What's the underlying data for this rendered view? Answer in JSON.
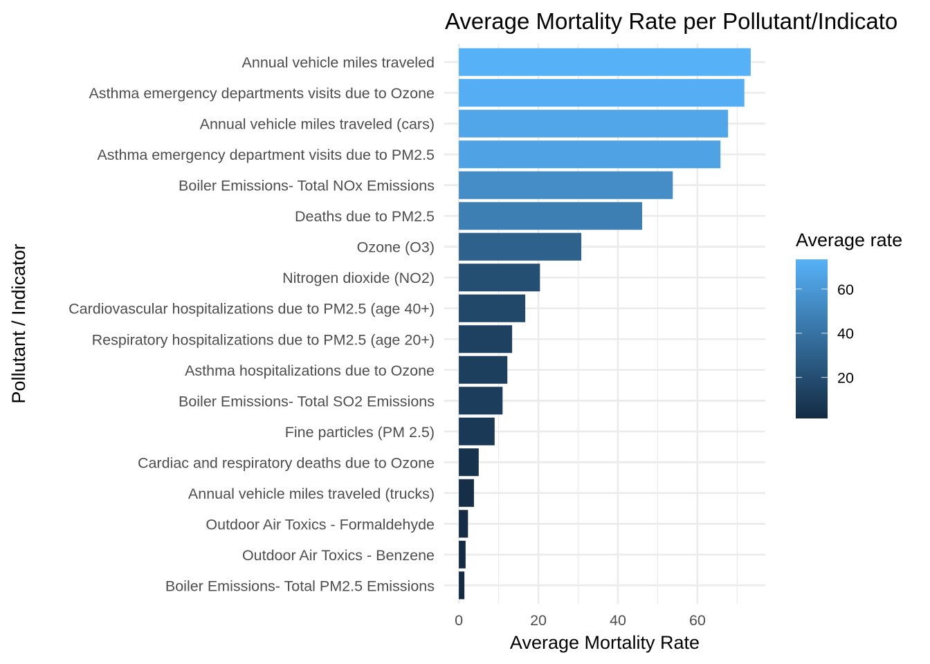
{
  "chart_data": {
    "type": "bar",
    "orientation": "horizontal",
    "title": "Average Mortality Rate per Pollutant/Indicato",
    "xlabel": "Average Mortality Rate",
    "ylabel": "Pollutant / Indicator",
    "categories": [
      "Annual vehicle miles traveled",
      "Asthma emergency departments visits due to Ozone",
      "Annual vehicle miles traveled (cars)",
      "Asthma emergency department visits due to PM2.5",
      "Boiler Emissions- Total NOx Emissions",
      "Deaths due to PM2.5",
      "Ozone (O3)",
      "Nitrogen dioxide (NO2)",
      "Cardiovascular hospitalizations due to PM2.5 (age 40+)",
      "Respiratory hospitalizations due to PM2.5 (age 20+)",
      "Asthma hospitalizations due to Ozone",
      "Boiler Emissions- Total SO2 Emissions",
      "Fine particles (PM 2.5)",
      "Cardiac and respiratory deaths due to Ozone",
      "Annual vehicle miles traveled (trucks)",
      "Outdoor Air Toxics - Formaldehyde",
      "Outdoor Air Toxics - Benzene",
      "Boiler Emissions- Total PM2.5 Emissions"
    ],
    "values": [
      73.4,
      71.8,
      67.7,
      65.8,
      53.8,
      46.1,
      30.8,
      20.4,
      16.7,
      13.4,
      12.2,
      11.0,
      9.0,
      5.0,
      3.8,
      2.3,
      1.7,
      1.4
    ],
    "xlim": [
      -3.67,
      77.07
    ],
    "xticks": [
      0,
      20,
      40,
      60
    ],
    "xtick_labels": [
      "0",
      "20",
      "40",
      "60"
    ],
    "x_minor_ticks": [
      10,
      30,
      50,
      70
    ],
    "grid": true,
    "legend": {
      "title": "Average rate",
      "type": "colorbar",
      "placement": "right",
      "ticks": [
        20,
        40,
        60
      ],
      "tick_labels": [
        "20",
        "40",
        "60"
      ],
      "range": [
        1.4,
        73.4
      ],
      "low_color": "#132B43",
      "high_color": "#56B1F7"
    }
  }
}
